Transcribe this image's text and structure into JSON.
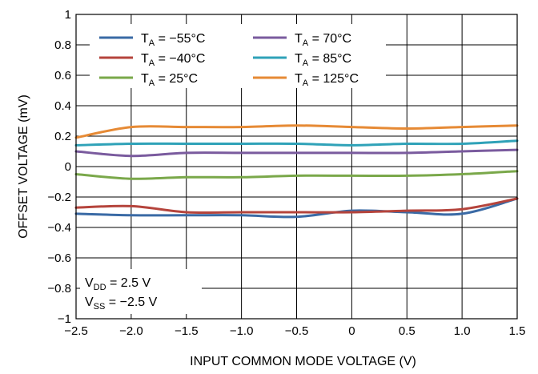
{
  "chart_data": {
    "type": "line",
    "title": "",
    "xlabel": "INPUT COMMON MODE VOLTAGE (V)",
    "ylabel": "OFFSET VOLTAGE (mV)",
    "xlim": [
      -2.5,
      1.5
    ],
    "ylim": [
      -1,
      1
    ],
    "x_ticks": [
      -2.5,
      -2.0,
      -1.5,
      -1.0,
      -0.5,
      0,
      0.5,
      1.0,
      1.5
    ],
    "x_tick_labels": [
      "−2.5",
      "−2.0",
      "−1.5",
      "−1.0",
      "−0.5",
      "0",
      "0.5",
      "1.0",
      "1.5"
    ],
    "y_ticks": [
      -1,
      -0.8,
      -0.6,
      -0.4,
      -0.2,
      0,
      0.2,
      0.4,
      0.6,
      0.8,
      1
    ],
    "y_tick_labels": [
      "−1",
      "−0.8",
      "−0.6",
      "−0.4",
      "−0.2",
      "0",
      "0.2",
      "0.4",
      "0.6",
      "0.8",
      "1"
    ],
    "grid": true,
    "legend_position": "top",
    "x": [
      -2.5,
      -2.0,
      -1.5,
      -1.0,
      -0.5,
      0.0,
      0.5,
      1.0,
      1.5
    ],
    "series": [
      {
        "name_main": "T",
        "name_sub": "A",
        "name_rest": " = −55°C",
        "color": "#3a6aa5",
        "values": [
          -0.31,
          -0.32,
          -0.32,
          -0.32,
          -0.33,
          -0.29,
          -0.3,
          -0.31,
          -0.21
        ]
      },
      {
        "name_main": "T",
        "name_sub": "A",
        "name_rest": " = −40°C",
        "color": "#b5443c",
        "values": [
          -0.27,
          -0.26,
          -0.3,
          -0.3,
          -0.3,
          -0.3,
          -0.29,
          -0.28,
          -0.21
        ]
      },
      {
        "name_main": "T",
        "name_sub": "A",
        "name_rest": " = 25°C",
        "color": "#7aa84a",
        "values": [
          -0.05,
          -0.08,
          -0.07,
          -0.07,
          -0.06,
          -0.06,
          -0.06,
          -0.05,
          -0.03
        ]
      },
      {
        "name_main": "T",
        "name_sub": "A",
        "name_rest": " = 70°C",
        "color": "#7a5b9e",
        "values": [
          0.1,
          0.07,
          0.09,
          0.09,
          0.09,
          0.09,
          0.09,
          0.1,
          0.11
        ]
      },
      {
        "name_main": "T",
        "name_sub": "A",
        "name_rest": " = 85°C",
        "color": "#2fa2b8",
        "values": [
          0.14,
          0.15,
          0.15,
          0.15,
          0.15,
          0.14,
          0.15,
          0.15,
          0.17
        ]
      },
      {
        "name_main": "T",
        "name_sub": "A",
        "name_rest": " = 125°C",
        "color": "#e68a35",
        "values": [
          0.19,
          0.26,
          0.26,
          0.26,
          0.27,
          0.26,
          0.25,
          0.26,
          0.27
        ]
      }
    ],
    "annotations": [
      {
        "main": "V",
        "sub": "DD",
        "rest": " = 2.5 V"
      },
      {
        "main": "V",
        "sub": "SS",
        "rest": " = −2.5 V"
      }
    ]
  }
}
